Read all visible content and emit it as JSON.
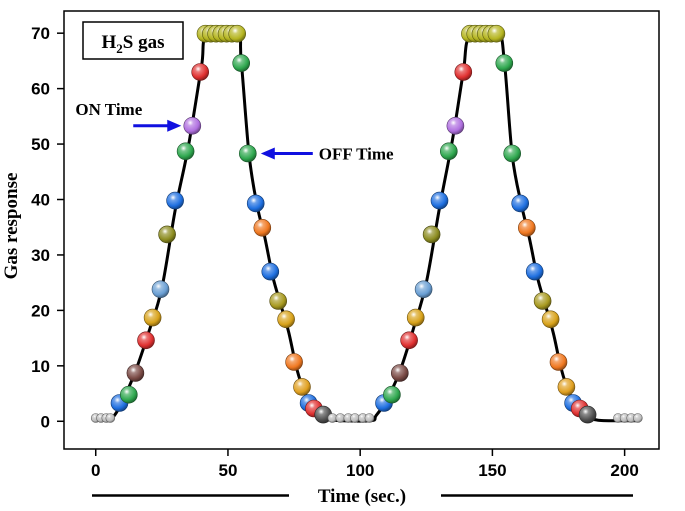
{
  "chart_data": {
    "type": "scatter",
    "title": "",
    "legend_label": "H2S gas",
    "legend_placement": "top-left",
    "xlabel": "Time (sec.)",
    "ylabel": "Gas response",
    "xlim": [
      -12,
      213
    ],
    "ylim": [
      -5,
      74
    ],
    "x_ticks": [
      0,
      50,
      100,
      150,
      200
    ],
    "y_ticks": [
      0,
      10,
      20,
      30,
      40,
      50,
      60,
      70
    ],
    "grid": false,
    "colors": {
      "curve": "#000000",
      "arrow": "#1010e0",
      "axes": "#000000"
    },
    "annotations": [
      {
        "text": "ON Time",
        "target": [
          36.5,
          53.3
        ]
      },
      {
        "text": "OFF Time",
        "target": [
          57.5,
          48.3
        ]
      }
    ],
    "series": [
      {
        "points": [
          {
            "x": 0,
            "y": 0.6,
            "color": "#bdbdbd"
          },
          {
            "x": 2,
            "y": 0.6,
            "color": "#bdbdbd"
          },
          {
            "x": 4,
            "y": 0.6,
            "color": "#bdbdbd"
          },
          {
            "x": 5.5,
            "y": 0.6,
            "color": "#bdbdbd"
          },
          {
            "x": 9,
            "y": 3.3,
            "color": "#1e6fe0"
          },
          {
            "x": 12.5,
            "y": 4.8,
            "color": "#2fa84f"
          },
          {
            "x": 15,
            "y": 8.7,
            "color": "#7a4a45"
          },
          {
            "x": 19,
            "y": 14.6,
            "color": "#e03030"
          },
          {
            "x": 21.5,
            "y": 18.7,
            "color": "#d8a21a"
          },
          {
            "x": 24.5,
            "y": 23.8,
            "color": "#6a9fd4"
          },
          {
            "x": 27,
            "y": 33.7,
            "color": "#8c8c20"
          },
          {
            "x": 30,
            "y": 39.8,
            "color": "#1e6fe0"
          },
          {
            "x": 34,
            "y": 48.7,
            "color": "#2fa84f"
          },
          {
            "x": 36.5,
            "y": 53.3,
            "color": "#b070e0"
          },
          {
            "x": 39.5,
            "y": 63.0,
            "color": "#e03030"
          },
          {
            "x": 41.5,
            "y": 69.9,
            "color": "#b5b520"
          },
          {
            "x": 43.5,
            "y": 69.9,
            "color": "#b5b520"
          },
          {
            "x": 45.5,
            "y": 69.9,
            "color": "#b5b520"
          },
          {
            "x": 47.5,
            "y": 69.9,
            "color": "#b5b520"
          },
          {
            "x": 49.5,
            "y": 69.9,
            "color": "#b5b520"
          },
          {
            "x": 51.5,
            "y": 69.9,
            "color": "#b5b520"
          },
          {
            "x": 53.5,
            "y": 69.9,
            "color": "#b5b520"
          },
          {
            "x": 55,
            "y": 64.6,
            "color": "#2fa84f"
          },
          {
            "x": 57.5,
            "y": 48.3,
            "color": "#2fa84f"
          },
          {
            "x": 60.5,
            "y": 39.3,
            "color": "#1e6fe0"
          },
          {
            "x": 63,
            "y": 34.9,
            "color": "#f07820"
          },
          {
            "x": 66,
            "y": 27.0,
            "color": "#1e6fe0"
          },
          {
            "x": 69,
            "y": 21.7,
            "color": "#a89a20"
          },
          {
            "x": 72,
            "y": 18.4,
            "color": "#d8a21a"
          },
          {
            "x": 75,
            "y": 10.7,
            "color": "#f07820"
          },
          {
            "x": 78,
            "y": 6.2,
            "color": "#e0a020"
          },
          {
            "x": 80.5,
            "y": 3.3,
            "color": "#1e6fe0"
          },
          {
            "x": 82.5,
            "y": 2.3,
            "color": "#e03030"
          },
          {
            "x": 86,
            "y": 1.2,
            "color": "#505050"
          },
          {
            "x": 89.5,
            "y": 0.6,
            "color": "#bdbdbd"
          },
          {
            "x": 92.5,
            "y": 0.6,
            "color": "#bdbdbd"
          },
          {
            "x": 95.5,
            "y": 0.6,
            "color": "#bdbdbd"
          },
          {
            "x": 98,
            "y": 0.6,
            "color": "#bdbdbd"
          },
          {
            "x": 101,
            "y": 0.6,
            "color": "#bdbdbd"
          },
          {
            "x": 103.5,
            "y": 0.6,
            "color": "#bdbdbd"
          },
          {
            "x": 109,
            "y": 3.3,
            "color": "#1e6fe0"
          },
          {
            "x": 112,
            "y": 4.8,
            "color": "#2fa84f"
          },
          {
            "x": 115,
            "y": 8.7,
            "color": "#7a4a45"
          },
          {
            "x": 118.5,
            "y": 14.6,
            "color": "#e03030"
          },
          {
            "x": 121,
            "y": 18.7,
            "color": "#d8a21a"
          },
          {
            "x": 124,
            "y": 23.8,
            "color": "#6a9fd4"
          },
          {
            "x": 127,
            "y": 33.7,
            "color": "#8c8c20"
          },
          {
            "x": 130,
            "y": 39.8,
            "color": "#1e6fe0"
          },
          {
            "x": 133.5,
            "y": 48.7,
            "color": "#2fa84f"
          },
          {
            "x": 136,
            "y": 53.3,
            "color": "#b070e0"
          },
          {
            "x": 139,
            "y": 63.0,
            "color": "#e03030"
          },
          {
            "x": 141.5,
            "y": 69.9,
            "color": "#b5b520"
          },
          {
            "x": 143.5,
            "y": 69.9,
            "color": "#b5b520"
          },
          {
            "x": 145.5,
            "y": 69.9,
            "color": "#b5b520"
          },
          {
            "x": 147.5,
            "y": 69.9,
            "color": "#b5b520"
          },
          {
            "x": 149.5,
            "y": 69.9,
            "color": "#b5b520"
          },
          {
            "x": 151.5,
            "y": 69.9,
            "color": "#b5b520"
          },
          {
            "x": 154.5,
            "y": 64.6,
            "color": "#2fa84f"
          },
          {
            "x": 157.5,
            "y": 48.3,
            "color": "#2fa84f"
          },
          {
            "x": 160.5,
            "y": 39.3,
            "color": "#1e6fe0"
          },
          {
            "x": 163,
            "y": 34.9,
            "color": "#f07820"
          },
          {
            "x": 166,
            "y": 27.0,
            "color": "#1e6fe0"
          },
          {
            "x": 169,
            "y": 21.7,
            "color": "#a89a20"
          },
          {
            "x": 172,
            "y": 18.4,
            "color": "#d8a21a"
          },
          {
            "x": 175,
            "y": 10.7,
            "color": "#f07820"
          },
          {
            "x": 178,
            "y": 6.2,
            "color": "#e0a020"
          },
          {
            "x": 180.5,
            "y": 3.3,
            "color": "#1e6fe0"
          },
          {
            "x": 183,
            "y": 2.3,
            "color": "#e03030"
          },
          {
            "x": 186,
            "y": 1.2,
            "color": "#505050"
          },
          {
            "x": 197.5,
            "y": 0.6,
            "color": "#bdbdbd"
          },
          {
            "x": 200,
            "y": 0.6,
            "color": "#bdbdbd"
          },
          {
            "x": 202.5,
            "y": 0.6,
            "color": "#bdbdbd"
          },
          {
            "x": 205,
            "y": 0.6,
            "color": "#bdbdbd"
          }
        ]
      }
    ],
    "curve": [
      [
        0,
        0.5
      ],
      [
        5,
        0.4
      ],
      [
        7,
        1
      ],
      [
        10,
        3.5
      ],
      [
        15,
        9
      ],
      [
        20,
        16
      ],
      [
        25,
        24
      ],
      [
        30,
        38
      ],
      [
        35,
        49.5
      ],
      [
        40,
        64
      ],
      [
        42,
        69.5
      ],
      [
        53.5,
        70
      ],
      [
        55,
        65
      ],
      [
        58,
        48
      ],
      [
        61,
        39
      ],
      [
        64,
        33
      ],
      [
        67,
        26
      ],
      [
        70,
        21
      ],
      [
        73,
        16
      ],
      [
        76,
        9.5
      ],
      [
        79,
        5.2
      ],
      [
        82,
        2.8
      ],
      [
        86,
        0.9
      ],
      [
        90,
        0.2
      ],
      [
        104,
        0.1
      ],
      [
        106,
        1
      ],
      [
        110,
        3.8
      ],
      [
        115,
        9
      ],
      [
        120,
        16.5
      ],
      [
        125,
        25
      ],
      [
        130,
        38.5
      ],
      [
        135,
        51
      ],
      [
        139,
        63
      ],
      [
        141.5,
        69.5
      ],
      [
        152,
        70
      ],
      [
        154.5,
        65
      ],
      [
        157.5,
        48
      ],
      [
        161,
        39
      ],
      [
        164,
        33
      ],
      [
        167,
        26
      ],
      [
        170,
        21
      ],
      [
        173,
        16
      ],
      [
        176,
        9.5
      ],
      [
        179,
        5.2
      ],
      [
        182,
        2.8
      ],
      [
        186,
        1.2
      ],
      [
        190,
        0.2
      ],
      [
        205,
        0.1
      ]
    ]
  }
}
